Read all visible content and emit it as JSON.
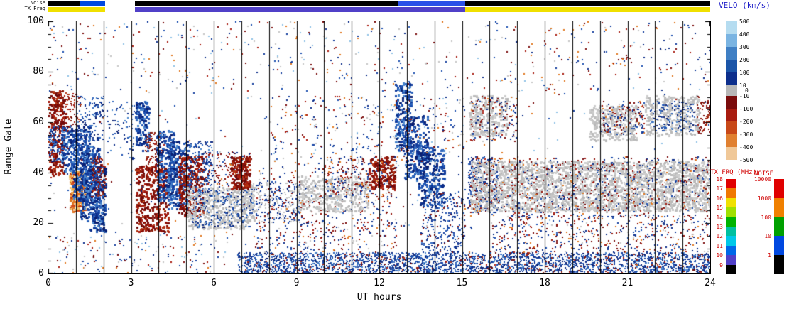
{
  "chart_data": {
    "type": "heatmap",
    "title": "",
    "xlabel": "UT hours",
    "ylabel": "Range Gate",
    "xlim": [
      0,
      24
    ],
    "ylim": [
      0,
      100
    ],
    "x_ticks": [
      0,
      3,
      6,
      9,
      12,
      15,
      18,
      21,
      24
    ],
    "y_ticks": [
      0,
      20,
      40,
      60,
      80,
      100
    ],
    "x_minor_step": 1,
    "y_minor_step": 5,
    "grid": "vertical-hour-lines",
    "strip_labels": {
      "noise": "Noise",
      "tx_freq": "TX Freq"
    },
    "strips": {
      "noise": [
        {
          "t0": 0,
          "t1": 1.13,
          "color": "#000000"
        },
        {
          "t0": 1.13,
          "t1": 2.06,
          "color": "#0048e0"
        },
        {
          "t0": 3.14,
          "t1": 12.67,
          "color": "#000000"
        },
        {
          "t0": 12.67,
          "t1": 15.12,
          "color": "#2a50e8"
        },
        {
          "t0": 15.12,
          "t1": 24,
          "color": "#000000"
        }
      ],
      "tx_freq": [
        {
          "t0": 0,
          "t1": 2.06,
          "color": "#f0e000"
        },
        {
          "t0": 3.14,
          "t1": 15.12,
          "color": "#5040c8"
        },
        {
          "t0": 15.12,
          "t1": 24,
          "color": "#f0e000"
        }
      ]
    },
    "colorbars": {
      "velocity": {
        "title": "VELO (km/s)",
        "labels": [
          "500",
          "400",
          "300",
          "200",
          "100",
          "10",
          "0",
          "-10",
          "-100",
          "-200",
          "-300",
          "-400",
          "-500"
        ],
        "segments": [
          "#b5dcf0",
          "#7ab4e2",
          "#3f7fc4",
          "#1b55a8",
          "#0d2f8c",
          "#b8b8b8",
          "#7a0c0c",
          "#a81c10",
          "#c84818",
          "#e08030",
          "#f0c898"
        ]
      },
      "tx_freq": {
        "title": "TX FRQ (MHz)",
        "labels": [
          "18",
          "17",
          "16",
          "15",
          "14",
          "13",
          "12",
          "11",
          "10",
          "9"
        ],
        "segments": [
          "#e00000",
          "#f07800",
          "#f0e000",
          "#a0e000",
          "#00b400",
          "#00c0a0",
          "#00c8e8",
          "#0068e8",
          "#5040c8",
          "#000000"
        ]
      },
      "noise": {
        "title": "NOISE",
        "labels": [
          "10000",
          "1000",
          "100",
          "10",
          "1"
        ],
        "segments": [
          "#e00000",
          "#f08000",
          "#00a000",
          "#0048e0",
          "#000000"
        ]
      }
    },
    "palettes": {
      "blue": [
        "#0c2c88",
        "#123c9c",
        "#1c50b0",
        "#2f66bd",
        "#0a1f70",
        "#4a86cc"
      ],
      "red": [
        "#7a0c0c",
        "#911107",
        "#a81c10",
        "#8a1a0a",
        "#b33414",
        "#6f0a0a"
      ],
      "orange": [
        "#e07820",
        "#f0a040",
        "#d4501e",
        "#f0c870",
        "#c03810",
        "#f5d2a0"
      ],
      "grey": [
        "#c6c6c6",
        "#bebebe",
        "#cecece",
        "#b8b8b8"
      ],
      "mixed": [
        "#0c2c88",
        "#123c9c",
        "#1c50b0",
        "#7a0c0c",
        "#a81c10",
        "#911107",
        "#c6c6c6",
        "#e07820",
        "#0c2c88",
        "#7a0c0c"
      ],
      "greymix": [
        "#c6c6c6",
        "#bebebe",
        "#0c2c88",
        "#123c9c",
        "#c6c6c6"
      ],
      "bluemix": [
        "#0c2c88",
        "#123c9c",
        "#1c50b0",
        "#2f66bd",
        "#7a0c0c",
        "#0c2c88"
      ],
      "dust": [
        "#0c2c88",
        "#7a0c0c",
        "#1c50b0",
        "#a81c10",
        "#c6c6c6",
        "#e07820",
        "#8fc2e6",
        "#123c9c"
      ]
    },
    "regions_schema": [
      "t_start_hr",
      "t_end_hr",
      "gate_min",
      "gate_max",
      "n_points",
      "palette",
      "point_px"
    ],
    "regions": [
      [
        0.0,
        0.55,
        38,
        72,
        260,
        "red",
        3
      ],
      [
        0.0,
        0.4,
        44,
        58,
        90,
        "blue",
        2
      ],
      [
        0.45,
        1.05,
        40,
        58,
        170,
        "blue",
        3
      ],
      [
        0.2,
        1.15,
        56,
        72,
        130,
        "red",
        2
      ],
      [
        0.75,
        1.35,
        24,
        40,
        300,
        "orange",
        3
      ],
      [
        0.85,
        1.5,
        28,
        58,
        280,
        "blue",
        3
      ],
      [
        1.15,
        1.85,
        20,
        50,
        300,
        "blue",
        3
      ],
      [
        1.5,
        2.06,
        16,
        42,
        220,
        "blue",
        3
      ],
      [
        1.0,
        2.0,
        52,
        70,
        130,
        "blue",
        2
      ],
      [
        1.55,
        2.05,
        30,
        46,
        110,
        "red",
        2
      ],
      [
        2.1,
        3.1,
        45,
        68,
        70,
        "blue",
        2
      ],
      [
        0.2,
        6.5,
        0,
        15,
        150,
        "dust",
        2
      ],
      [
        3.15,
        3.65,
        48,
        68,
        160,
        "blue",
        3
      ],
      [
        3.15,
        4.35,
        16,
        42,
        380,
        "red",
        3
      ],
      [
        3.5,
        4.15,
        38,
        56,
        140,
        "red",
        2
      ],
      [
        3.9,
        4.55,
        28,
        56,
        240,
        "blue",
        3
      ],
      [
        4.3,
        5.15,
        25,
        52,
        280,
        "blue",
        3
      ],
      [
        4.7,
        5.6,
        22,
        46,
        280,
        "red",
        3
      ],
      [
        5.1,
        5.95,
        30,
        52,
        160,
        "blue",
        2
      ],
      [
        5.0,
        7.45,
        17,
        34,
        520,
        "grey",
        3
      ],
      [
        5.2,
        7.4,
        18,
        33,
        200,
        "blue",
        2
      ],
      [
        5.6,
        7.3,
        34,
        48,
        170,
        "mixed",
        2
      ],
      [
        6.6,
        7.3,
        33,
        46,
        190,
        "red",
        3
      ],
      [
        7.3,
        9.2,
        20,
        36,
        240,
        "greymix",
        2
      ],
      [
        6.8,
        24.0,
        0,
        8,
        2400,
        "blue",
        2
      ],
      [
        7.0,
        24.0,
        0,
        8,
        260,
        "red",
        2
      ],
      [
        7.5,
        12.6,
        8,
        42,
        520,
        "mixed",
        2
      ],
      [
        9.0,
        11.6,
        24,
        38,
        380,
        "grey",
        3
      ],
      [
        10.0,
        12.6,
        30,
        46,
        220,
        "mixed",
        2
      ],
      [
        11.6,
        12.55,
        33,
        46,
        170,
        "red",
        3
      ],
      [
        12.55,
        13.15,
        48,
        75,
        210,
        "blue",
        3
      ],
      [
        12.9,
        13.75,
        36,
        62,
        250,
        "blue",
        3
      ],
      [
        13.4,
        14.35,
        26,
        50,
        250,
        "blue",
        3
      ],
      [
        13.5,
        15.1,
        8,
        32,
        280,
        "bluemix",
        2
      ],
      [
        0.0,
        24.0,
        72,
        100,
        430,
        "dust",
        2
      ],
      [
        8.0,
        15.1,
        42,
        70,
        330,
        "dust",
        2
      ],
      [
        15.25,
        16.6,
        54,
        70,
        280,
        "grey",
        3
      ],
      [
        15.2,
        16.3,
        24,
        46,
        320,
        "bluemix",
        2
      ],
      [
        15.3,
        24.0,
        24,
        44,
        2600,
        "grey",
        3
      ],
      [
        15.3,
        24.0,
        22,
        46,
        750,
        "mixed",
        2
      ],
      [
        16.0,
        24.0,
        8,
        23,
        480,
        "mixed",
        2
      ],
      [
        19.6,
        21.3,
        52,
        66,
        300,
        "grey",
        3
      ],
      [
        21.6,
        23.6,
        54,
        70,
        320,
        "grey",
        3
      ],
      [
        21.8,
        23.4,
        56,
        68,
        130,
        "blue",
        2
      ],
      [
        20.0,
        21.6,
        55,
        68,
        160,
        "mixed",
        2
      ],
      [
        23.5,
        24.0,
        55,
        70,
        70,
        "red",
        2
      ],
      [
        15.3,
        17.0,
        52,
        70,
        150,
        "mixed",
        2
      ],
      [
        0.0,
        24.0,
        0,
        100,
        550,
        "dust",
        2
      ]
    ]
  }
}
